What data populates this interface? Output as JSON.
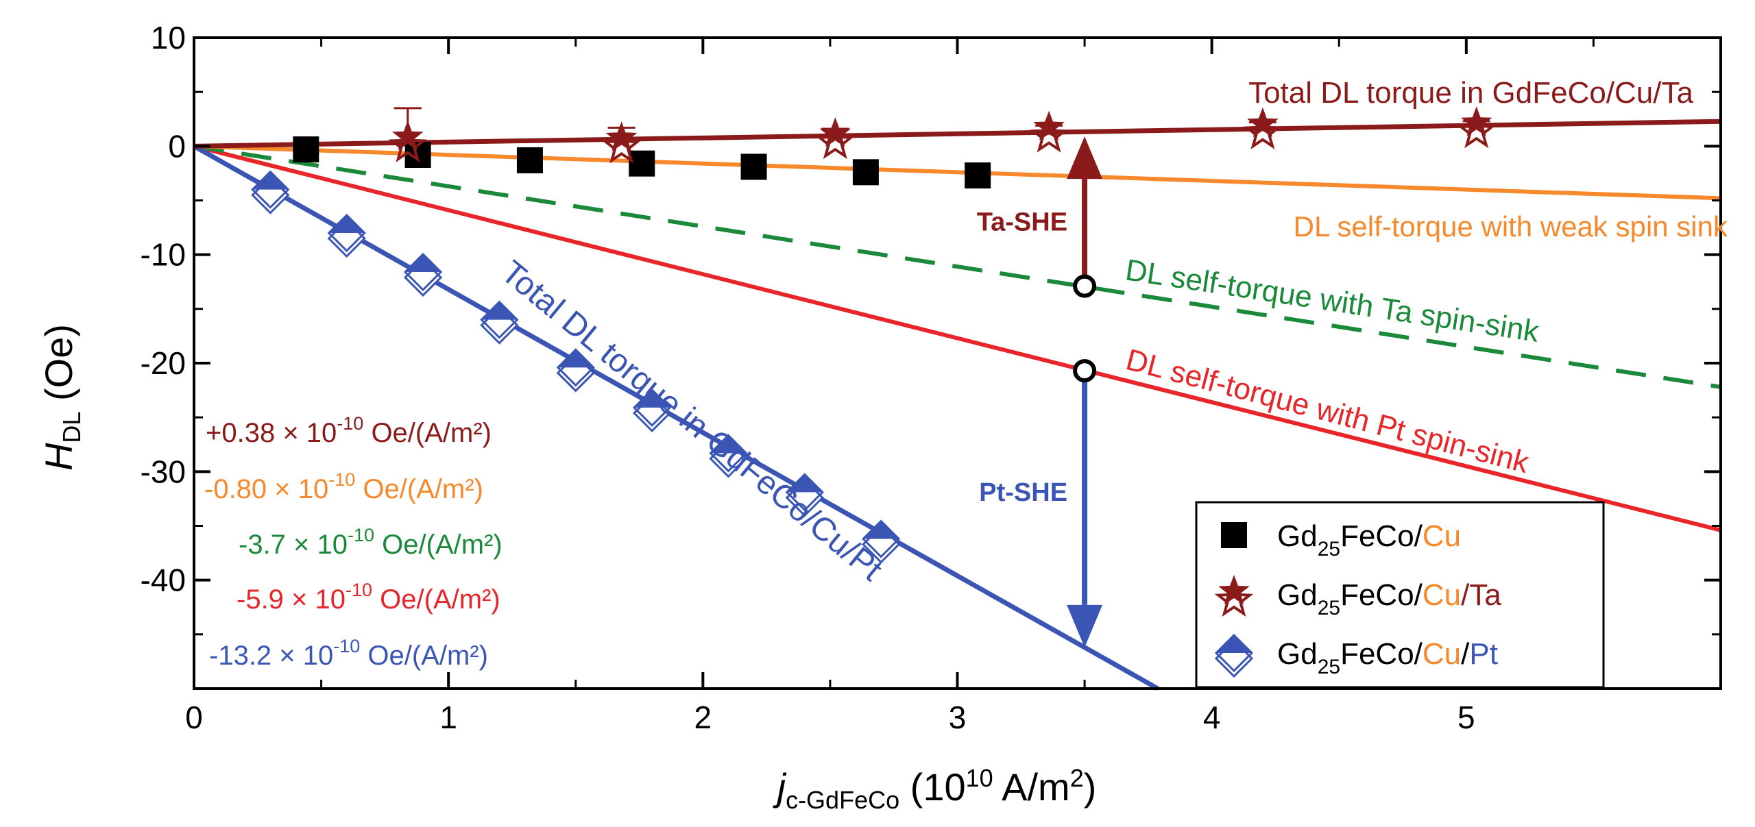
{
  "chart_data": {
    "type": "line",
    "xlabel": {
      "main": "j",
      "sub": "c-GdFeCo",
      "rest": " (10",
      "sup": "10",
      "tail": " A/m",
      "sup2": "2",
      "close": ")"
    },
    "ylabel": {
      "main": "H",
      "sub": "DL",
      "rest": " (Oe)"
    },
    "xlim": [
      0,
      6
    ],
    "ylim": [
      -50,
      10
    ],
    "xticks": [
      0,
      1,
      2,
      3,
      4,
      5
    ],
    "xtick_labels": [
      "0",
      "1",
      "2",
      "3",
      "4",
      "5"
    ],
    "yticks": [
      10,
      0,
      -10,
      -20,
      -30,
      -40
    ],
    "ytick_labels": [
      "10",
      "0",
      "-10",
      "-20",
      "-30",
      "-40"
    ],
    "grid": false,
    "legend_position": "bottom-right",
    "colors": {
      "darkred": "#8b1a1a",
      "orange": "#f5892b",
      "green": "#1a8a3a",
      "red": "#e8262a",
      "blue": "#3a55b4",
      "black": "#000000"
    },
    "lines": [
      {
        "key": "ta_total",
        "slope": 0.38,
        "color": "#8b1a1a",
        "dash": false,
        "label": "Total  DL torque in GdFeCo/Cu/Ta"
      },
      {
        "key": "weak_sink",
        "slope": -0.8,
        "color": "#f5892b",
        "dash": false,
        "label": "DL self-torque with weak spin sink"
      },
      {
        "key": "ta_sink",
        "slope": -3.7,
        "color": "#1a8a3a",
        "dash": true,
        "label": "DL self-torque with Ta spin-sink"
      },
      {
        "key": "pt_sink",
        "slope": -5.9,
        "color": "#e8262a",
        "dash": false,
        "label": "DL self-torque with Pt spin-sink"
      },
      {
        "key": "pt_total",
        "slope": -13.2,
        "color": "#3a55b4",
        "dash": false,
        "label": "Total  DL torque in GdFeCo/Cu/Pt"
      }
    ],
    "series": [
      {
        "name": "Gd25FeCo/Cu",
        "marker": "square",
        "color": "#000000",
        "x": [
          0.44,
          0.88,
          1.32,
          1.76,
          2.2,
          2.64,
          3.08
        ],
        "y": [
          -0.3,
          -0.8,
          -1.3,
          -1.6,
          -1.9,
          -2.4,
          -2.7
        ]
      },
      {
        "name": "Gd25FeCo/Cu/Ta",
        "marker": "star",
        "color": "#8b1a1a",
        "x": [
          0.84,
          1.68,
          2.52,
          3.36,
          4.2,
          5.04
        ],
        "y": [
          0.6,
          0.5,
          0.9,
          1.5,
          1.8,
          1.9
        ],
        "yerr_top": [
          3.5,
          1.7,
          1.6,
          1.9,
          2.2,
          2.3
        ]
      },
      {
        "name": "Gd25FeCo/Cu/Pt",
        "marker": "diamond",
        "color": "#3a55b4",
        "x": [
          0.3,
          0.6,
          0.9,
          1.2,
          1.5,
          1.8,
          2.1,
          2.4,
          2.7
        ],
        "y": [
          -4.0,
          -8.0,
          -11.6,
          -16.0,
          -20.4,
          -24.1,
          -28.3,
          -31.9,
          -36.2
        ]
      }
    ],
    "legend": [
      {
        "marker": "square",
        "parts": [
          {
            "t": "Gd",
            "c": "#000000"
          },
          {
            "t": "25",
            "c": "#000000",
            "sub": true
          },
          {
            "t": "FeCo/",
            "c": "#000000"
          },
          {
            "t": "Cu",
            "c": "#f5892b"
          }
        ]
      },
      {
        "marker": "star",
        "parts": [
          {
            "t": "Gd",
            "c": "#000000"
          },
          {
            "t": "25",
            "c": "#000000",
            "sub": true
          },
          {
            "t": "FeCo/",
            "c": "#000000"
          },
          {
            "t": "Cu",
            "c": "#f5892b"
          },
          {
            "t": "/Ta",
            "c": "#8b1a1a"
          }
        ]
      },
      {
        "marker": "diamond",
        "parts": [
          {
            "t": "Gd",
            "c": "#000000"
          },
          {
            "t": "25",
            "c": "#000000",
            "sub": true
          },
          {
            "t": "FeCo/",
            "c": "#000000"
          },
          {
            "t": "Cu",
            "c": "#f5892b"
          },
          {
            "t": "/",
            "c": "#000000"
          },
          {
            "t": "Pt",
            "c": "#3a55b4"
          }
        ]
      }
    ],
    "slope_annotations": [
      {
        "value": "+0.38",
        "color": "#8b1a1a",
        "unit": "Oe/(A/m²)"
      },
      {
        "value": "-0.80",
        "color": "#f5892b",
        "unit": "Oe/(A/m²)"
      },
      {
        "value": "-3.7",
        "color": "#1a8a3a",
        "unit": "Oe/(A/m²)"
      },
      {
        "value": "-5.9",
        "color": "#e8262a",
        "unit": "Oe/(A/m²)"
      },
      {
        "value": "-13.2",
        "color": "#3a55b4",
        "unit": "Oe/(A/m²)"
      }
    ],
    "slope_factor": "× 10",
    "slope_exp": "-10",
    "arrows": [
      {
        "label": "Ta-SHE",
        "x": 3.5,
        "y_from": -12.9,
        "y_to": 0.9,
        "color": "#8b1a1a"
      },
      {
        "label": "Pt-SHE",
        "x": 3.5,
        "y_from": -20.7,
        "y_to": -46.2,
        "color": "#3a55b4"
      }
    ],
    "circle_points": [
      {
        "x": 3.5,
        "y": -12.9
      },
      {
        "x": 3.5,
        "y": -20.7
      }
    ]
  }
}
